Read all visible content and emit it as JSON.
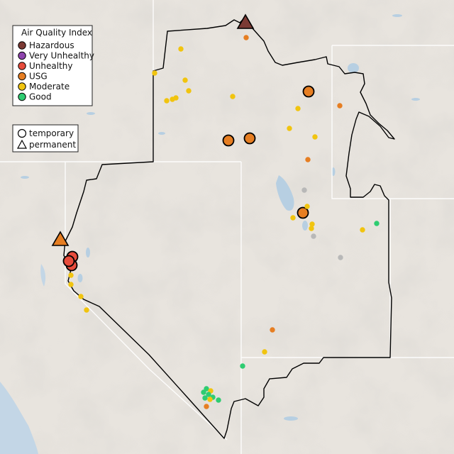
{
  "legend": {
    "title": "Air Quality Index",
    "categories": [
      {
        "key": "hazardous",
        "label": "Hazardous",
        "color": "#7b3a34"
      },
      {
        "key": "very_unhealthy",
        "label": "Very Unhealthy",
        "color": "#8e44ad"
      },
      {
        "key": "unhealthy",
        "label": "Unhealthy",
        "color": "#e74c3c"
      },
      {
        "key": "usg",
        "label": "USG",
        "color": "#e67e22"
      },
      {
        "key": "moderate",
        "label": "Moderate",
        "color": "#f1c40f"
      },
      {
        "key": "good",
        "label": "Good",
        "color": "#2ecc71"
      }
    ],
    "no_data_color": "#b8b8b8",
    "monitor_types": [
      {
        "key": "temporary",
        "label": "temporary",
        "symbol": "circle"
      },
      {
        "key": "permanent",
        "label": "permanent",
        "symbol": "triangle"
      }
    ]
  },
  "colors": {
    "land": "#e8e4de",
    "ocean": "#c3d6e6",
    "lake": "#b7cfe2",
    "region_outline": "#000000"
  }
}
